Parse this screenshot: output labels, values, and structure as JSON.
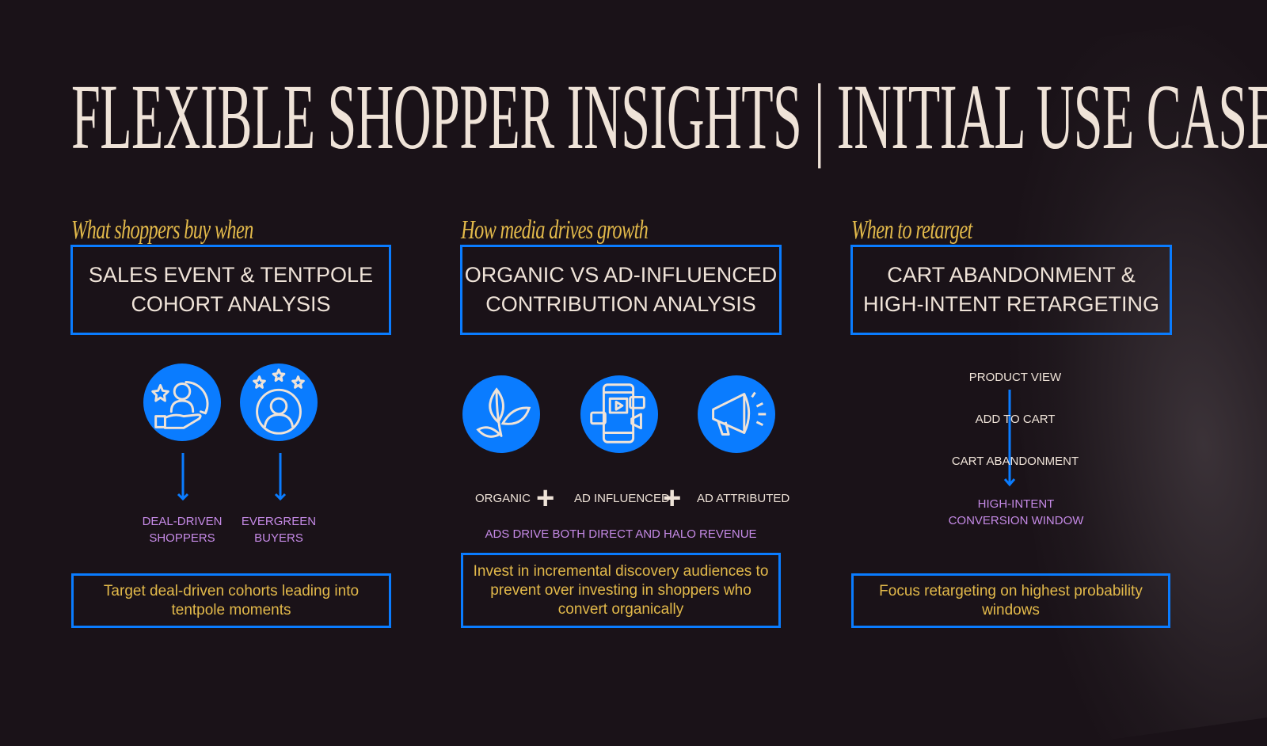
{
  "title": "FLEXIBLE SHOPPER INSIGHTS | INITIAL USE CASES",
  "colors": {
    "background": "#1a1218",
    "accent_blue": "#0a7cff",
    "gold": "#e2b94a",
    "cream": "#efe3d8",
    "purple": "#c58ae6"
  },
  "columns": [
    {
      "kicker": "What shoppers buy when",
      "heading_line1": "SALES EVENT & TENTPOLE",
      "heading_line2": "COHORT ANALYSIS",
      "icons": [
        "deal-shopper-icon",
        "evergreen-buyer-icon"
      ],
      "labels": [
        {
          "line1": "DEAL-DRIVEN",
          "line2": "SHOPPERS"
        },
        {
          "line1": "EVERGREEN",
          "line2": "BUYERS"
        }
      ],
      "footer": "Target deal-driven cohorts leading into tentpole moments"
    },
    {
      "kicker": "How media drives growth",
      "heading_line1": "ORGANIC VS AD-INFLUENCED",
      "heading_line2": "CONTRIBUTION ANALYSIS",
      "icons": [
        "leaf-icon",
        "mobile-media-icon",
        "megaphone-icon"
      ],
      "terms": [
        "ORGANIC",
        "AD INFLUENCED",
        "AD ATTRIBUTED"
      ],
      "operator": "+",
      "summary": "ADS DRIVE BOTH DIRECT AND HALO REVENUE",
      "footer": "Invest in incremental discovery audiences to prevent over investing in shoppers who convert organically"
    },
    {
      "kicker": "When to retarget",
      "heading_line1": "CART ABANDONMENT &",
      "heading_line2": "HIGH-INTENT RETARGETING",
      "steps": [
        "PRODUCT VIEW",
        "ADD TO CART",
        "CART ABANDONMENT"
      ],
      "outcome_line1": "HIGH-INTENT",
      "outcome_line2": "CONVERSION WINDOW",
      "footer": "Focus retargeting on highest probability windows"
    }
  ]
}
